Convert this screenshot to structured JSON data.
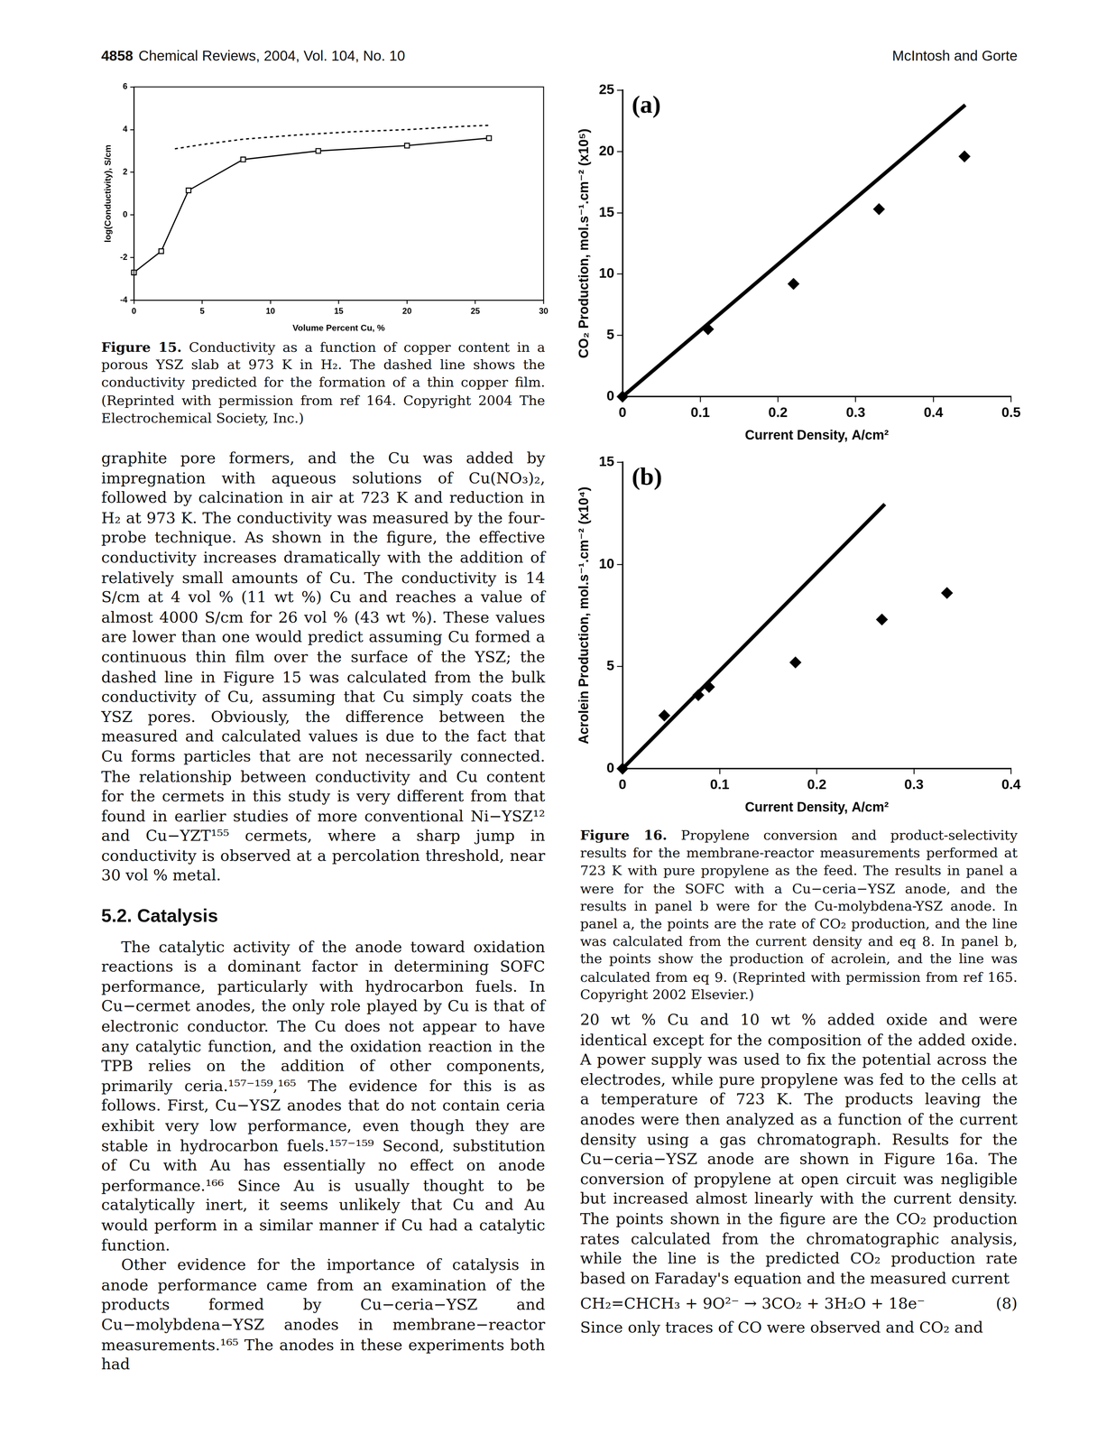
{
  "chart_data": [
    {
      "type": "line",
      "x_label": "Volume Percent Cu, %",
      "y_label": "log(Conductivity), S/cm",
      "xlim": [
        0,
        30
      ],
      "xticks": [
        0,
        5,
        10,
        15,
        20,
        25,
        30
      ],
      "ylim": [
        -4,
        6
      ],
      "yticks": [
        -4,
        -2,
        0,
        2,
        4,
        6
      ],
      "grid": false,
      "series": [
        {
          "type": "line",
          "color": "#000000",
          "marker": "open square",
          "line_style": "solid",
          "x": [
            0,
            2,
            4,
            8,
            13.5,
            20,
            26
          ],
          "values": [
            -2.7,
            -1.7,
            1.15,
            2.6,
            3.0,
            3.25,
            3.6
          ]
        },
        {
          "type": "line",
          "color": "#000000",
          "marker": "none",
          "line_style": "dashed",
          "x": [
            3,
            5,
            8,
            12,
            16,
            20,
            24,
            26
          ],
          "values": [
            3.1,
            3.3,
            3.55,
            3.75,
            3.9,
            4.0,
            4.15,
            4.2
          ]
        }
      ]
    },
    {
      "type": "scatter",
      "annotations": [
        "(a)"
      ],
      "x_label": "Current Density, A/cm²",
      "y_label": "CO₂ Production, mol.s⁻¹.cm⁻² (x10⁵)",
      "xlim": [
        0,
        0.5
      ],
      "xticks": [
        0,
        0.1,
        0.2,
        0.3,
        0.4,
        0.5
      ],
      "ylim": [
        0,
        25
      ],
      "yticks": [
        0,
        5,
        10,
        15,
        20,
        25
      ],
      "grid": false,
      "series": [
        {
          "type": "scatter",
          "color": "#000000",
          "marker": "diamond",
          "line_style": "none",
          "x": [
            0,
            0.11,
            0.22,
            0.33,
            0.44
          ],
          "values": [
            0,
            5.5,
            9.2,
            15.3,
            19.6
          ]
        },
        {
          "type": "line",
          "color": "#000000",
          "marker": "none",
          "line_style": "solid",
          "x": [
            0,
            0.441
          ],
          "values": [
            0,
            23.8
          ]
        }
      ]
    },
    {
      "type": "scatter",
      "annotations": [
        "(b)"
      ],
      "x_label": "Current Density, A/cm²",
      "y_label": "Acrolein Production, mol.s⁻¹.cm⁻² (x10⁴)",
      "xlim": [
        0,
        0.4
      ],
      "xticks": [
        0,
        0.1,
        0.2,
        0.3,
        0.4
      ],
      "ylim": [
        0,
        15
      ],
      "yticks": [
        0,
        5,
        10,
        15
      ],
      "grid": false,
      "series": [
        {
          "type": "scatter",
          "color": "#000000",
          "marker": "diamond",
          "line_style": "none",
          "x": [
            0,
            0.043,
            0.078,
            0.089,
            0.178,
            0.267,
            0.334
          ],
          "values": [
            0,
            2.6,
            3.6,
            4.0,
            5.2,
            7.3,
            8.6
          ]
        },
        {
          "type": "line",
          "color": "#000000",
          "marker": "none",
          "line_style": "solid",
          "x": [
            0,
            0.27
          ],
          "values": [
            0,
            12.95
          ]
        }
      ]
    }
  ],
  "document": {
    "header": {
      "page_number": "4858",
      "journal": "Chemical Reviews, 2004, Vol. 104, No. 10",
      "authors": "McIntosh and Gorte"
    },
    "captions": [
      {
        "label": "Figure 15.",
        "text": "Conductivity as a function of copper content in a porous YSZ slab at 973 K in H₂. The dashed line shows the conductivity predicted for the formation of a thin copper film. (Reprinted with permission from ref 164. Copyright 2004 The Electrochemical Society, Inc.)"
      },
      {
        "label": "Figure 16.",
        "text": "Propylene conversion and product-selectivity results for the membrane-reactor measurements performed at 723 K with pure propylene as the feed. The results in panel a were for the SOFC with a Cu−ceria−YSZ anode, and the results in panel b were for the Cu-molybdena-YSZ anode. In panel a, the points are the rate of CO₂ production, and the line was calculated from the current density and eq 8. In panel b, the points show the production of acrolein, and the line was calculated from eq 9. (Reprinted with permission from ref 165. Copyright 2002 Elsevier.)"
      }
    ],
    "left_column": [
      {
        "kind": "paragraph",
        "text": "graphite pore formers, and the Cu was added by impregnation with aqueous solutions of Cu(NO₃)₂, followed by calcination in air at 723 K and reduction in H₂ at 973 K. The conductivity was measured by the four-probe technique. As shown in the figure, the effective conductivity increases dramatically with the addition of relatively small amounts of Cu. The conductivity is 14 S/cm at 4 vol % (11 wt %) Cu and reaches a value of almost 4000 S/cm for 26 vol % (43 wt %). These values are lower than one would predict assuming Cu formed a continuous thin film over the surface of the YSZ; the dashed line in Figure 15 was calculated from the bulk conductivity of Cu, assuming that Cu simply coats the YSZ pores. Obviously, the difference between the measured and calculated values is due to the fact that Cu forms particles that are not necessarily connected. The relationship between conductivity and Cu content for the cermets in this study is very different from that found in earlier studies of more conventional Ni−YSZ¹² and Cu−YZT¹⁵⁵ cermets, where a sharp jump in conductivity is observed at a percolation threshold, near 30 vol % metal."
      },
      {
        "kind": "heading",
        "text": "5.2. Catalysis"
      },
      {
        "kind": "indented",
        "text": "The catalytic activity of the anode toward oxidation reactions is a dominant factor in determining SOFC performance, particularly with hydrocarbon fuels. In Cu−cermet anodes, the only role played by Cu is that of electronic conductor. The Cu does not appear to have any catalytic function, and the oxidation reaction in the TPB relies on the addition of other components, primarily ceria.¹⁵⁷⁻¹⁵⁹,¹⁶⁵ The evidence for this is as follows. First, Cu−YSZ anodes that do not contain ceria exhibit very low performance, even though they are stable in hydrocarbon fuels.¹⁵⁷⁻¹⁵⁹ Second, substitution of Cu with Au has essentially no effect on anode performance.¹⁶⁶ Since Au is usually thought to be catalytically inert, it seems unlikely that Cu and Au would perform in a similar manner if Cu had a catalytic function."
      },
      {
        "kind": "indented",
        "text": "Other evidence for the importance of catalysis in anode performance came from an examination of the products formed by Cu−ceria−YSZ and Cu−molybdena−YSZ anodes in membrane−reactor measurements.¹⁶⁵ The anodes in these experiments both had"
      }
    ],
    "right_column": [
      {
        "kind": "paragraph",
        "text": "20 wt % Cu and 10 wt % added oxide and were identical except for the composition of the added oxide. A power supply was used to fix the potential across the electrodes, while pure propylene was fed to the cells at a temperature of 723 K. The products leaving the anodes were then analyzed as a function of the current density using a gas chromatograph. Results for the Cu−ceria−YSZ anode are shown in Figure 16a. The conversion of propylene at open circuit was negligible but increased almost linearly with the current density. The points shown in the figure are the CO₂ production rates calculated from the chromatographic analysis, while the line is the predicted CO₂ production rate based on Faraday's equation and the measured current"
      },
      {
        "kind": "equation",
        "text": "CH₂=CHCH₃ + 9O²⁻ → 3CO₂ + 3H₂O + 18e⁻",
        "number": "(8)"
      },
      {
        "kind": "paragraph",
        "text": "Since only traces of CO were observed and CO₂ and"
      }
    ]
  }
}
